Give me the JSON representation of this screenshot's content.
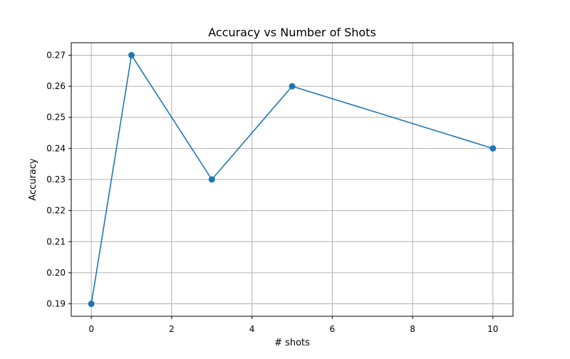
{
  "chart_data": {
    "type": "line",
    "title": "Accuracy vs Number of Shots",
    "xlabel": "# shots",
    "ylabel": "Accuracy",
    "x": [
      0,
      1,
      3,
      5,
      10
    ],
    "series": [
      {
        "values": [
          0.19,
          0.27,
          0.23,
          0.26,
          0.24
        ],
        "color": "#1f77b4",
        "marker": "circle"
      }
    ],
    "xlim": [
      -0.5,
      10.5
    ],
    "ylim": [
      0.186,
      0.274
    ],
    "xticks": [
      0,
      2,
      4,
      6,
      8,
      10
    ],
    "xtick_labels": [
      "0",
      "2",
      "4",
      "6",
      "8",
      "10"
    ],
    "yticks": [
      0.19,
      0.2,
      0.21,
      0.22,
      0.23,
      0.24,
      0.25,
      0.26,
      0.27
    ],
    "ytick_labels": [
      "0.19",
      "0.20",
      "0.21",
      "0.22",
      "0.23",
      "0.24",
      "0.25",
      "0.26",
      "0.27"
    ],
    "grid": true,
    "legend": false
  }
}
